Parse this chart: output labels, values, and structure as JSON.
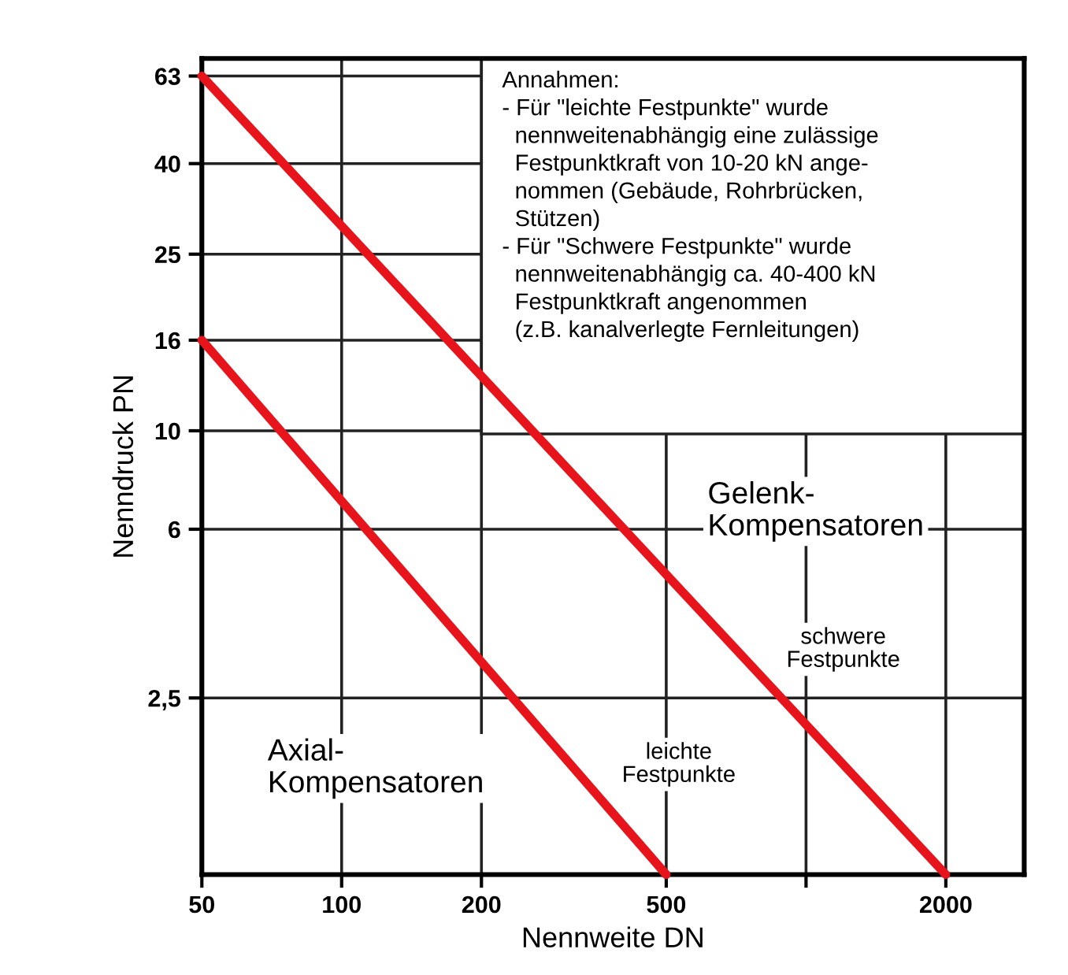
{
  "chart_data": {
    "type": "line",
    "xlabel": "Nennweite DN",
    "ylabel": "Nenndruck PN",
    "log": "xy",
    "series": [
      {
        "x": [
          50,
          2000
        ],
        "values": [
          63,
          1
        ],
        "color": "#e8141c"
      },
      {
        "x": [
          50,
          500
        ],
        "values": [
          16,
          1
        ],
        "color": "#e8141c"
      }
    ],
    "xlim": [
      50,
      2950
    ],
    "ylim": [
      1,
      69
    ],
    "xticks": [
      50,
      100,
      200,
      500,
      {
        "value": 1000,
        "label": null
      },
      2000
    ],
    "yticks": [
      {
        "value": 2.5,
        "label": "2,5"
      },
      6,
      10,
      16,
      25,
      40,
      63
    ],
    "grid": true,
    "marker": "none",
    "line_style": "solid",
    "annotations": [
      "Annahmen:\n- Für \"leichte Festpunkte\" wurde\n  nennweitenabhängig eine zulässige\n  Festpunktkraft von 10-20 kN ange-\n  nommen (Gebäude, Rohrbrücken,\n  Stützen)\n- Für \"Schwere Festpunkte\" wurde\n  nennweitenabhängig ca. 40-400 kN\n  Festpunktkraft angenommen\n  (z.B. kanalverlegte Fernleitungen)",
      "Gelenk-\nKompensatoren",
      "Axial-\nKompensatoren",
      "leichte\nFestpunkte",
      "schwere\nFestpunkte"
    ]
  }
}
